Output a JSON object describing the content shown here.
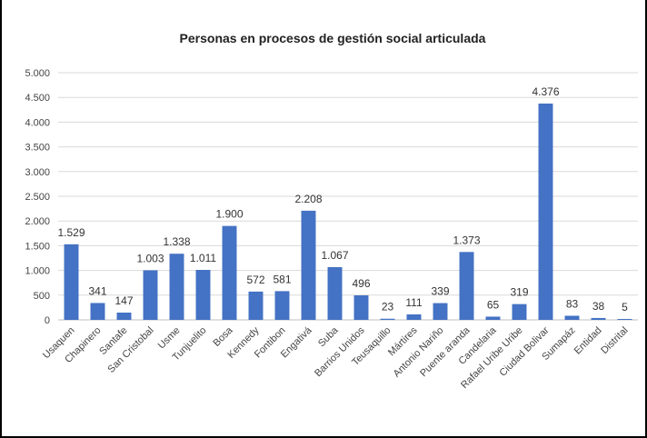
{
  "chart_data": {
    "type": "bar",
    "title": "Personas en procesos de gestión social articulada",
    "xlabel": "",
    "ylabel": "",
    "ylim": [
      0,
      5000
    ],
    "yticks": [
      0,
      500,
      1000,
      1500,
      2000,
      2500,
      3000,
      3500,
      4000,
      4500,
      5000
    ],
    "ytick_labels": [
      "0",
      "500",
      "1.000",
      "1.500",
      "2.000",
      "2.500",
      "3.000",
      "3.500",
      "4.000",
      "4.500",
      "5.000"
    ],
    "grid": true,
    "legend": "none",
    "bar_color": "#4472c4",
    "categories": [
      "Usaquen",
      "Chapinero",
      "Santafe",
      "San Cristobal",
      "Usme",
      "Tunjuelito",
      "Bosa",
      "Kennedy",
      "Fontibon",
      "Engativá",
      "Suba",
      "Barrios Unidos",
      "Teusaquillo",
      "Mártires",
      "Antonio Nariño",
      "Puente aranda",
      "Candelaria",
      "Rafael Uribe Uribe",
      "Ciudad Bolivar",
      "Sumapáz",
      "Entidad",
      "Distrital"
    ],
    "values": [
      1529,
      341,
      147,
      1003,
      1338,
      1011,
      1900,
      572,
      581,
      2208,
      1067,
      496,
      23,
      111,
      339,
      1373,
      65,
      319,
      4376,
      83,
      38,
      5
    ],
    "value_labels": [
      "1.529",
      "341",
      "147",
      "1.003",
      "1.338",
      "1.011",
      "1.900",
      "572",
      "581",
      "2.208",
      "1.067",
      "496",
      "23",
      "111",
      "339",
      "1.373",
      "65",
      "319",
      "4.376",
      "83",
      "38",
      "5"
    ]
  }
}
